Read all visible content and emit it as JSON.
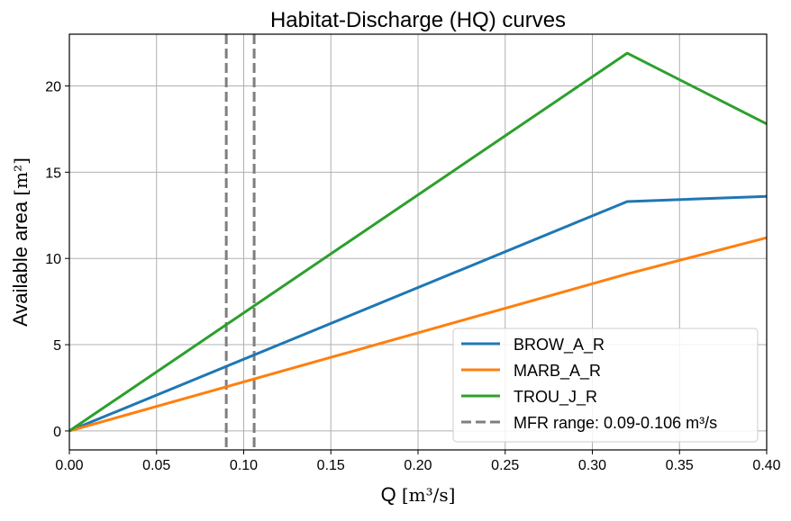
{
  "chart_data": {
    "type": "line",
    "title": "Habitat-Discharge (HQ) curves",
    "xlabel": "Q",
    "xlabel_unit": "[m³/s]",
    "ylabel": "Available area",
    "ylabel_unit": "[m²]",
    "xlim": [
      0,
      0.4
    ],
    "ylim": [
      -1.1,
      23
    ],
    "xticks": [
      0,
      0.05,
      0.1,
      0.15,
      0.2,
      0.25,
      0.3,
      0.35,
      0.4
    ],
    "xtick_labels": [
      "0.00",
      "0.05",
      "0.10",
      "0.15",
      "0.20",
      "0.25",
      "0.30",
      "0.35",
      "0.40"
    ],
    "yticks": [
      0,
      5,
      10,
      15,
      20
    ],
    "ytick_labels": [
      "0",
      "5",
      "10",
      "15",
      "20"
    ],
    "grid": true,
    "legend_placement": "lower-right",
    "series": [
      {
        "name": "BROW_A_R",
        "color": "#1f77b4",
        "x": [
          0,
          0.32,
          0.4
        ],
        "y": [
          0,
          13.3,
          13.6
        ]
      },
      {
        "name": "MARB_A_R",
        "color": "#ff7f0e",
        "x": [
          0,
          0.32,
          0.4
        ],
        "y": [
          0,
          9.1,
          11.2
        ]
      },
      {
        "name": "TROU_J_R",
        "color": "#2ca02c",
        "x": [
          0,
          0.32,
          0.4
        ],
        "y": [
          0,
          21.9,
          17.8
        ]
      }
    ],
    "vlines": {
      "name": "MFR range: 0.09-0.106 m³/s",
      "color": "#7f7f7f",
      "style": "dashed",
      "x": [
        0.09,
        0.106
      ]
    }
  }
}
